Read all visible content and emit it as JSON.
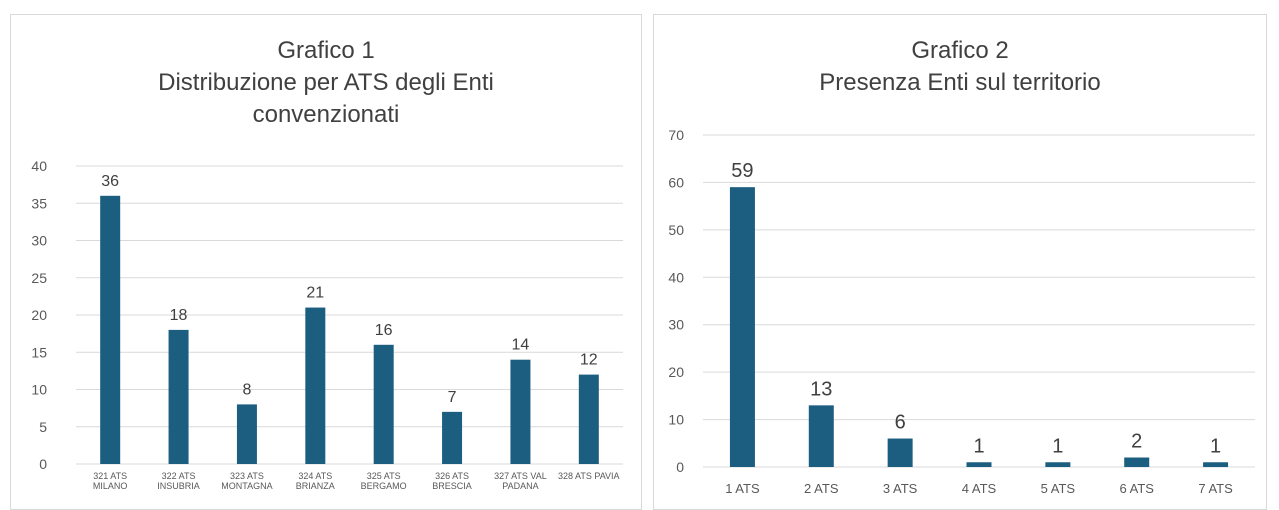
{
  "chart_data": [
    {
      "type": "bar",
      "title": [
        "Grafico 1",
        "Distribuzione per ATS degli Enti",
        "convenzionati"
      ],
      "categories": [
        [
          "321 ATS",
          "MILANO"
        ],
        [
          "322 ATS",
          "INSUBRIA"
        ],
        [
          "323 ATS",
          "MONTAGNA"
        ],
        [
          "324 ATS",
          "BRIANZA"
        ],
        [
          "325 ATS",
          "BERGAMO"
        ],
        [
          "326 ATS",
          "BRESCIA"
        ],
        [
          "327 ATS VAL",
          "PADANA"
        ],
        [
          "328 ATS PAVIA"
        ]
      ],
      "values": [
        36,
        18,
        8,
        21,
        16,
        7,
        14,
        12
      ],
      "ylim": [
        0,
        40
      ],
      "yticks": [
        0,
        5,
        10,
        15,
        20,
        25,
        30,
        35,
        40
      ],
      "grid": true,
      "bar_color": "#1c5e80"
    },
    {
      "type": "bar",
      "title": [
        "Grafico 2",
        "Presenza Enti sul territorio"
      ],
      "categories": [
        [
          "1 ATS"
        ],
        [
          "2 ATS"
        ],
        [
          "3 ATS"
        ],
        [
          "4 ATS"
        ],
        [
          "5 ATS"
        ],
        [
          "6 ATS"
        ],
        [
          "7 ATS"
        ]
      ],
      "values": [
        59,
        13,
        6,
        1,
        1,
        2,
        1
      ],
      "ylim": [
        0,
        70
      ],
      "yticks": [
        0,
        10,
        20,
        30,
        40,
        50,
        60,
        70
      ],
      "grid": true,
      "bar_color": "#1c5e80"
    }
  ]
}
